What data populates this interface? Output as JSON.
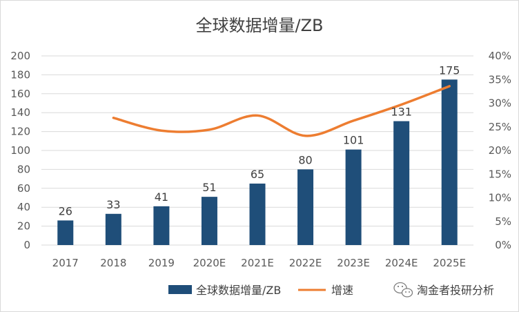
{
  "chart_data": {
    "type": "bar",
    "title": "全球数据增量/ZB",
    "categories": [
      "2017",
      "2018",
      "2019",
      "2020E",
      "2021E",
      "2022E",
      "2023E",
      "2024E",
      "2025E"
    ],
    "series": [
      {
        "name": "全球数据增量/ZB",
        "type": "bar",
        "axis": "left",
        "color": "#1f4e79",
        "values": [
          26,
          33,
          41,
          51,
          65,
          80,
          101,
          131,
          175
        ],
        "data_labels": [
          "26",
          "33",
          "41",
          "51",
          "65",
          "80",
          "101",
          "131",
          "175"
        ]
      },
      {
        "name": "增速",
        "type": "line",
        "axis": "right",
        "color": "#ed7d31",
        "smooth": true,
        "values": [
          null,
          0.269,
          0.242,
          0.244,
          0.274,
          0.231,
          0.263,
          0.297,
          0.336
        ]
      }
    ],
    "y_left": {
      "ylim": [
        0,
        200
      ],
      "ticks": [
        "0",
        "20",
        "40",
        "60",
        "80",
        "100",
        "120",
        "140",
        "160",
        "180",
        "200"
      ]
    },
    "y_right": {
      "ylim": [
        0,
        0.4
      ],
      "ticks": [
        "0%",
        "5%",
        "10%",
        "15%",
        "20%",
        "25%",
        "30%",
        "35%",
        "40%"
      ]
    },
    "grid": true,
    "legend_position": "bottom"
  },
  "watermark": {
    "icon": "wechat-icon",
    "text": "淘金者投研分析"
  }
}
